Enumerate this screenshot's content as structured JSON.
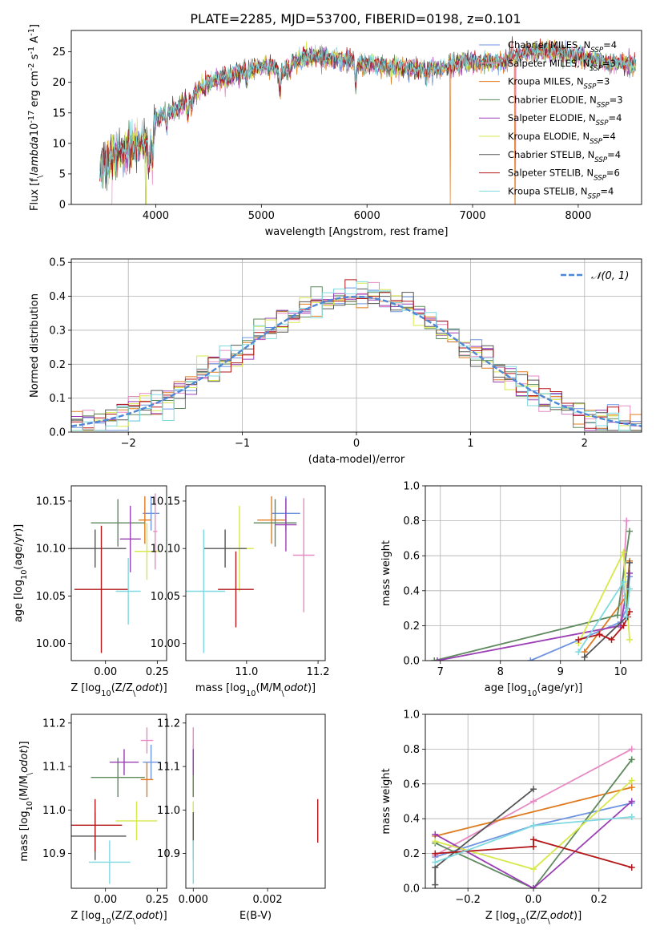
{
  "figure_title": "PLATE=2285, MJD=53700, FIBERID=0198, z=0.101",
  "model_colors": {
    "Chabrier MILES": "#6f95e0",
    "Salpeter MILES": "#e78ac3",
    "Kroupa MILES": "#e07b1f",
    "Chabrier ELODIE": "#5e8a5e",
    "Salpeter ELODIE": "#9b3fb5",
    "Kroupa ELODIE": "#d7e84a",
    "Chabrier STELIB": "#555555",
    "Salpeter STELIB": "#b3171a",
    "Kroupa STELIB": "#7fd9e0"
  },
  "chart_data": [
    {
      "id": "spectrum",
      "type": "line",
      "xlabel": "wavelength [Angstrom, rest frame]",
      "ylabel": "Flux [f$_\\lambda$10$^{-17}$ erg cm$^{-2}$ s$^{-1}$ A$^{-1}$]",
      "xlim": [
        3200,
        8600
      ],
      "ylim": [
        0,
        28.5
      ],
      "xticks": [
        4000,
        5000,
        6000,
        7000,
        8000
      ],
      "yticks": [
        0,
        5,
        10,
        15,
        20,
        25
      ],
      "legend_position": "right",
      "legend": [
        {
          "label": "Chabrier MILES, N",
          "sub": "SSP",
          "eq": "=4"
        },
        {
          "label": "Salpeter MILES, N",
          "sub": "SSP",
          "eq": "=3"
        },
        {
          "label": "Kroupa MILES, N",
          "sub": "SSP",
          "eq": "=3"
        },
        {
          "label": "Chabrier ELODIE, N",
          "sub": "SSP",
          "eq": "=3"
        },
        {
          "label": "Salpeter ELODIE, N",
          "sub": "SSP",
          "eq": "=4"
        },
        {
          "label": "Kroupa ELODIE, N",
          "sub": "SSP",
          "eq": "=4"
        },
        {
          "label": "Chabrier STELIB, N",
          "sub": "SSP",
          "eq": "=4"
        },
        {
          "label": "Salpeter STELIB, N",
          "sub": "SSP",
          "eq": "=6"
        },
        {
          "label": "Kroupa STELIB, N",
          "sub": "SSP",
          "eq": "=4"
        }
      ],
      "continuum": [
        [
          3470,
          6.2
        ],
        [
          3550,
          7.2
        ],
        [
          3650,
          8.5
        ],
        [
          3800,
          9.6
        ],
        [
          3900,
          10.2
        ],
        [
          3950,
          9.2
        ],
        [
          4000,
          13.8
        ],
        [
          4100,
          15.2
        ],
        [
          4200,
          15.5
        ],
        [
          4300,
          17.2
        ],
        [
          4400,
          18.5
        ],
        [
          4500,
          19.8
        ],
        [
          4700,
          21.0
        ],
        [
          4900,
          22.2
        ],
        [
          5100,
          22.8
        ],
        [
          5200,
          21.6
        ],
        [
          5300,
          23.6
        ],
        [
          5500,
          24.2
        ],
        [
          5700,
          23.9
        ],
        [
          5900,
          23.2
        ],
        [
          6100,
          22.8
        ],
        [
          6300,
          22.4
        ],
        [
          6500,
          22.2
        ],
        [
          6700,
          22.2
        ],
        [
          6900,
          23.4
        ],
        [
          7100,
          23.3
        ],
        [
          7300,
          23.2
        ],
        [
          7400,
          24.5
        ],
        [
          7600,
          25.3
        ],
        [
          7800,
          25.0
        ],
        [
          8000,
          24.2
        ],
        [
          8300,
          23.2
        ],
        [
          8550,
          22.8
        ]
      ],
      "absorption_features": [
        [
          3934,
          3.5
        ],
        [
          3969,
          3.0
        ],
        [
          4102,
          2.5
        ],
        [
          4304,
          3.0
        ],
        [
          4340,
          2.0
        ],
        [
          4861,
          2.0
        ],
        [
          5175,
          3.5
        ],
        [
          5270,
          1.5
        ],
        [
          5893,
          4.0
        ],
        [
          6563,
          2.0
        ],
        [
          7600,
          1.0
        ]
      ],
      "dropouts": [
        {
          "series": "Salpeter MILES",
          "x": [
            3585,
            7405
          ]
        },
        {
          "series": "Kroupa MILES",
          "x": [
            6790,
            7400
          ]
        },
        {
          "series": "Kroupa ELODIE",
          "x": [
            3905
          ]
        },
        {
          "series": "Chabrier ELODIE",
          "x": [
            3905
          ]
        }
      ]
    },
    {
      "id": "residual_histogram",
      "type": "line",
      "xlabel": "(data-model)/error",
      "ylabel": "Normed distribution",
      "xlim": [
        -2.5,
        2.5
      ],
      "ylim": [
        0,
        0.51
      ],
      "xticks": [
        -2,
        -1,
        0,
        1,
        2
      ],
      "yticks": [
        0.0,
        0.1,
        0.2,
        0.3,
        0.4,
        0.5
      ],
      "legend": [
        {
          "label": "𝒩(0, 1)"
        }
      ],
      "legend_position": "top-right",
      "bin_width": 0.1,
      "grid": true
    },
    {
      "id": "age_vs_Z",
      "type": "scatter",
      "xlabel": "Z [log$_{10}$(Z/Z$_\\odot$)]",
      "ylabel": "age  [log$_{10}$(age/yr)]",
      "xlim": [
        -0.165,
        0.295
      ],
      "ylim": [
        9.982,
        10.166
      ],
      "xticks": [
        0.0,
        0.25
      ],
      "yticks": [
        10.0,
        10.05,
        10.1,
        10.15
      ],
      "points": [
        {
          "model": "Chabrier MILES",
          "x": 0.22,
          "xerr": 0.04,
          "y": 10.137,
          "yerr": 0.018
        },
        {
          "model": "Salpeter MILES",
          "x": 0.24,
          "xerr": 0.01,
          "y": 10.118,
          "yerr": 0.04
        },
        {
          "model": "Kroupa MILES",
          "x": 0.19,
          "xerr": 0.03,
          "y": 10.13,
          "yerr": 0.025
        },
        {
          "model": "Chabrier ELODIE",
          "x": 0.06,
          "xerr": 0.13,
          "y": 10.127,
          "yerr": 0.025
        },
        {
          "model": "Salpeter ELODIE",
          "x": 0.12,
          "xerr": 0.05,
          "y": 10.11,
          "yerr": 0.035
        },
        {
          "model": "Kroupa ELODIE",
          "x": 0.2,
          "xerr": 0.06,
          "y": 10.097,
          "yerr": 0.03
        },
        {
          "model": "Chabrier STELIB",
          "x": -0.05,
          "xerr": 0.15,
          "y": 10.1,
          "yerr": 0.02
        },
        {
          "model": "Salpeter STELIB",
          "x": -0.02,
          "xerr": 0.13,
          "y": 10.057,
          "yerr": 0.067
        },
        {
          "model": "Kroupa STELIB",
          "x": 0.11,
          "xerr": 0.06,
          "y": 10.055,
          "yerr": 0.035
        }
      ]
    },
    {
      "id": "age_vs_mass",
      "type": "scatter",
      "xlabel": "mass [log$_{10}$(M/M$_\\odot$)]",
      "ylabel": "",
      "xlim": [
        10.83,
        11.22
      ],
      "ylim": [
        9.982,
        10.166
      ],
      "xticks": [
        11.0,
        11.2
      ],
      "yticks": [
        10.0,
        10.05,
        10.1,
        10.15
      ],
      "points": [
        {
          "model": "Chabrier MILES",
          "x": 11.11,
          "xerr": 0.04,
          "y": 10.137,
          "yerr": 0.018
        },
        {
          "model": "Salpeter MILES",
          "x": 11.16,
          "xerr": 0.03,
          "y": 10.093,
          "yerr": 0.06
        },
        {
          "model": "Kroupa MILES",
          "x": 11.07,
          "xerr": 0.04,
          "y": 10.13,
          "yerr": 0.025
        },
        {
          "model": "Chabrier ELODIE",
          "x": 11.08,
          "xerr": 0.06,
          "y": 10.127,
          "yerr": 0.025
        },
        {
          "model": "Salpeter ELODIE",
          "x": 11.11,
          "xerr": 0.03,
          "y": 10.125,
          "yerr": 0.028
        },
        {
          "model": "Kroupa ELODIE",
          "x": 10.98,
          "xerr": 0.04,
          "y": 10.1,
          "yerr": 0.045
        },
        {
          "model": "Chabrier STELIB",
          "x": 10.94,
          "xerr": 0.06,
          "y": 10.1,
          "yerr": 0.02
        },
        {
          "model": "Salpeter STELIB",
          "x": 10.97,
          "xerr": 0.05,
          "y": 10.057,
          "yerr": 0.04
        },
        {
          "model": "Kroupa STELIB",
          "x": 10.88,
          "xerr": 0.06,
          "y": 10.055,
          "yerr": 0.065
        }
      ]
    },
    {
      "id": "massweight_vs_age",
      "type": "line",
      "xlabel": "age  [log$_{10}$(age/yr)]",
      "ylabel": "mass weight",
      "xlim": [
        6.75,
        10.35
      ],
      "ylim": [
        0,
        1.0
      ],
      "xticks": [
        7,
        8,
        9,
        10
      ],
      "yticks": [
        0.0,
        0.2,
        0.4,
        0.6,
        0.8,
        1.0
      ],
      "grid": true,
      "series": [
        {
          "model": "Chabrier MILES",
          "points": [
            [
              8.5,
              0.0
            ],
            [
              10.0,
              0.22
            ],
            [
              10.1,
              0.3
            ],
            [
              10.15,
              0.48
            ]
          ]
        },
        {
          "model": "Salpeter MILES",
          "points": [
            [
              10.0,
              0.19
            ],
            [
              10.1,
              0.8
            ]
          ]
        },
        {
          "model": "Kroupa MILES",
          "points": [
            [
              9.4,
              0.05
            ],
            [
              10.1,
              0.37
            ],
            [
              10.15,
              0.57
            ]
          ]
        },
        {
          "model": "Chabrier ELODIE",
          "points": [
            [
              6.9,
              0.0
            ],
            [
              9.95,
              0.26
            ],
            [
              10.15,
              0.74
            ]
          ]
        },
        {
          "model": "Salpeter ELODIE",
          "points": [
            [
              6.95,
              0.0
            ],
            [
              10.0,
              0.2
            ],
            [
              10.15,
              0.5
            ]
          ]
        },
        {
          "model": "Kroupa ELODIE",
          "points": [
            [
              9.3,
              0.1
            ],
            [
              10.05,
              0.62
            ],
            [
              10.15,
              0.12
            ]
          ]
        },
        {
          "model": "Chabrier STELIB",
          "points": [
            [
              9.4,
              0.02
            ],
            [
              10.1,
              0.25
            ],
            [
              10.15,
              0.56
            ]
          ]
        },
        {
          "model": "Salpeter STELIB",
          "points": [
            [
              9.3,
              0.12
            ],
            [
              9.65,
              0.15
            ],
            [
              9.85,
              0.12
            ],
            [
              10.05,
              0.2
            ],
            [
              10.12,
              0.25
            ],
            [
              10.15,
              0.28
            ]
          ]
        },
        {
          "model": "Kroupa STELIB",
          "points": [
            [
              9.3,
              0.05
            ],
            [
              10.05,
              0.45
            ],
            [
              10.1,
              0.25
            ],
            [
              10.15,
              0.41
            ]
          ]
        }
      ]
    },
    {
      "id": "mass_vs_Z",
      "type": "scatter",
      "xlabel": "Z [log$_{10}$(Z/Z$_\\odot$)]",
      "ylabel": "mass [log$_{10}$(M/M$_\\odot$)]",
      "xlim": [
        -0.165,
        0.295
      ],
      "ylim": [
        10.82,
        11.22
      ],
      "xticks": [
        0.0,
        0.25
      ],
      "yticks": [
        10.9,
        11.0,
        11.1,
        11.2
      ],
      "points": [
        {
          "model": "Chabrier MILES",
          "x": 0.22,
          "xerr": 0.04,
          "y": 11.11,
          "yerr": 0.04
        },
        {
          "model": "Salpeter MILES",
          "x": 0.2,
          "xerr": 0.03,
          "y": 11.16,
          "yerr": 0.03
        },
        {
          "model": "Kroupa MILES",
          "x": 0.2,
          "xerr": 0.03,
          "y": 11.07,
          "yerr": 0.04
        },
        {
          "model": "Chabrier ELODIE",
          "x": 0.06,
          "xerr": 0.13,
          "y": 11.075,
          "yerr": 0.045
        },
        {
          "model": "Salpeter ELODIE",
          "x": 0.09,
          "xerr": 0.07,
          "y": 11.11,
          "yerr": 0.03
        },
        {
          "model": "Kroupa ELODIE",
          "x": 0.15,
          "xerr": 0.1,
          "y": 10.975,
          "yerr": 0.045
        },
        {
          "model": "Chabrier STELIB",
          "x": -0.05,
          "xerr": 0.15,
          "y": 10.94,
          "yerr": 0.055
        },
        {
          "model": "Salpeter STELIB",
          "x": -0.05,
          "xerr": 0.13,
          "y": 10.965,
          "yerr": 0.06
        },
        {
          "model": "Kroupa STELIB",
          "x": 0.02,
          "xerr": 0.1,
          "y": 10.88,
          "yerr": 0.05
        }
      ]
    },
    {
      "id": "mass_vs_ebv",
      "type": "scatter",
      "xlabel": "E(B-V)",
      "ylabel": "",
      "xlim": [
        -0.0002,
        0.00355
      ],
      "ylim": [
        10.82,
        11.22
      ],
      "xticks": [
        0.0,
        0.002
      ],
      "yticks": [
        10.9,
        11.0,
        11.1,
        11.2
      ],
      "points": [
        {
          "model": "Chabrier MILES",
          "x": 0.0,
          "xerr": 0.0,
          "y": 11.11,
          "yerr": 0.04
        },
        {
          "model": "Salpeter MILES",
          "x": 0.0,
          "xerr": 0.0,
          "y": 11.16,
          "yerr": 0.03
        },
        {
          "model": "Kroupa MILES",
          "x": 0.0,
          "xerr": 0.0,
          "y": 11.07,
          "yerr": 0.04
        },
        {
          "model": "Chabrier ELODIE",
          "x": 0.0,
          "xerr": 0.0,
          "y": 11.075,
          "yerr": 0.045
        },
        {
          "model": "Salpeter ELODIE",
          "x": 0.0,
          "xerr": 0.0,
          "y": 11.11,
          "yerr": 0.03
        },
        {
          "model": "Kroupa ELODIE",
          "x": 0.0,
          "xerr": 0.0,
          "y": 10.975,
          "yerr": 0.045
        },
        {
          "model": "Chabrier STELIB",
          "x": 0.0,
          "xerr": 0.0,
          "y": 10.94,
          "yerr": 0.055
        },
        {
          "model": "Salpeter STELIB",
          "x": 0.00335,
          "xerr": 0.0,
          "y": 10.975,
          "yerr": 0.05
        },
        {
          "model": "Kroupa STELIB",
          "x": 0.0,
          "xerr": 0.0,
          "y": 10.88,
          "yerr": 0.05
        }
      ]
    },
    {
      "id": "massweight_vs_Z",
      "type": "line",
      "xlabel": "Z [log$_{10}$(Z/Z$_\\odot$)]",
      "ylabel": "mass weight",
      "xlim": [
        -0.33,
        0.33
      ],
      "ylim": [
        0,
        1.0
      ],
      "xticks": [
        -0.2,
        0.0,
        0.2
      ],
      "yticks": [
        0.0,
        0.2,
        0.4,
        0.6,
        0.8,
        1.0
      ],
      "grid": true,
      "series": [
        {
          "model": "Chabrier MILES",
          "points": [
            [
              -0.3,
              0.18
            ],
            [
              0.0,
              0.36
            ],
            [
              0.3,
              0.49
            ]
          ]
        },
        {
          "model": "Salpeter MILES",
          "points": [
            [
              -0.3,
              0.19
            ],
            [
              0.0,
              0.5
            ],
            [
              0.3,
              0.8
            ]
          ]
        },
        {
          "model": "Kroupa MILES",
          "points": [
            [
              -0.3,
              0.3
            ],
            [
              0.3,
              0.58
            ]
          ]
        },
        {
          "model": "Chabrier ELODIE",
          "points": [
            [
              -0.3,
              0.26
            ],
            [
              0.0,
              0.0
            ],
            [
              0.3,
              0.74
            ]
          ]
        },
        {
          "model": "Salpeter ELODIE",
          "points": [
            [
              -0.3,
              0.31
            ],
            [
              0.0,
              0.0
            ],
            [
              0.3,
              0.5
            ]
          ]
        },
        {
          "model": "Kroupa ELODIE",
          "points": [
            [
              -0.3,
              0.27
            ],
            [
              0.0,
              0.11
            ],
            [
              0.3,
              0.62
            ]
          ]
        },
        {
          "model": "Chabrier STELIB",
          "points": [
            [
              -0.3,
              0.02
            ],
            [
              -0.3,
              0.12
            ],
            [
              0.0,
              0.57
            ]
          ]
        },
        {
          "model": "Salpeter STELIB",
          "points": [
            [
              -0.3,
              0.2
            ],
            [
              0.0,
              0.24
            ],
            [
              0.0,
              0.28
            ],
            [
              0.3,
              0.12
            ]
          ]
        },
        {
          "model": "Kroupa STELIB",
          "points": [
            [
              -0.3,
              0.15
            ],
            [
              0.0,
              0.36
            ],
            [
              0.3,
              0.41
            ]
          ]
        }
      ]
    }
  ]
}
